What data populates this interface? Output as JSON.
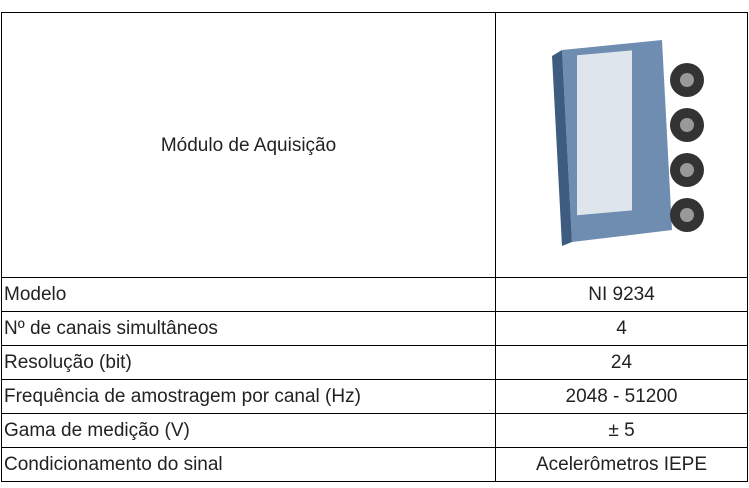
{
  "table": {
    "header": {
      "label": "Módulo de Aquisição"
    },
    "rows": [
      [
        "Modelo",
        "NI 9234"
      ],
      [
        "Nº de canais simultâneos",
        4
      ],
      [
        "Resolução (bit)",
        24
      ],
      [
        "Frequência de amostragem por canal (Hz)",
        "2048 - 51200"
      ],
      [
        "Gama de medição (V)",
        "± 5"
      ],
      [
        "Condicionamento do sinal",
        "Acelerômetros IEPE"
      ]
    ]
  }
}
